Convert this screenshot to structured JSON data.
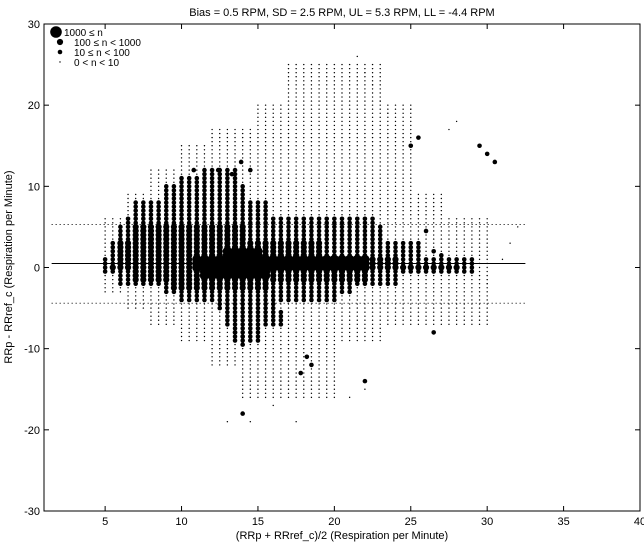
{
  "chart_data": {
    "type": "scatter",
    "title": "Bias = 0.5 RPM, SD = 2.5 RPM, UL = 5.3 RPM, LL = -4.4 RPM",
    "xlabel": "(RRp + RRref_c)/2 (Respiration per Minute)",
    "ylabel": "RRp - RRref_c (Respiration per Minute)",
    "xlim": [
      1,
      40
    ],
    "ylim": [
      -30,
      30
    ],
    "x_ticks": [
      5,
      10,
      15,
      20,
      25,
      30,
      35,
      40
    ],
    "y_ticks": [
      -30,
      -20,
      -10,
      0,
      10,
      20,
      30
    ],
    "x_tick_labels": [
      "5",
      "10",
      "15",
      "20",
      "25",
      "30",
      "35",
      "40"
    ],
    "y_tick_labels": [
      "-30",
      "-20",
      "-10",
      "0",
      "10",
      "20",
      "30"
    ],
    "grid": false,
    "legend_position": "top-left",
    "legend": [
      {
        "label": "1000 ≤ n",
        "size_class": "xlarge"
      },
      {
        "label": "100 ≤ n < 1000",
        "size_class": "large"
      },
      {
        "label": "10 ≤ n < 100",
        "size_class": "medium"
      },
      {
        "label": "0 < n < 10",
        "size_class": "small"
      }
    ],
    "reference_lines": [
      {
        "name": "Bias",
        "y": 0.5,
        "style": "solid",
        "x_range": [
          1.5,
          32.5
        ]
      },
      {
        "name": "UL",
        "y": 5.3,
        "style": "dotted",
        "x_range": [
          1.5,
          32.5
        ]
      },
      {
        "name": "LL",
        "y": -4.4,
        "style": "dotted",
        "x_range": [
          1.5,
          32.5
        ]
      }
    ],
    "color": "#000000",
    "grid_step": 0.5,
    "series": [
      {
        "size_class": "xlarge",
        "regions": [
          {
            "x": [
              11,
              22
            ],
            "y": [
              0,
              1
            ]
          },
          {
            "x": [
              11.5,
              15.5
            ],
            "y": [
              -1,
              -0.5
            ]
          },
          {
            "x": [
              13,
              15
            ],
            "y": [
              1.5,
              2
            ]
          }
        ],
        "points": []
      },
      {
        "size_class": "large",
        "regions": [
          {
            "x": [
              5.5,
              28
            ],
            "y": [
              0,
              0
            ]
          },
          {
            "x": [
              6,
              24
            ],
            "y": [
              0.5,
              1
            ]
          },
          {
            "x": [
              6,
              19
            ],
            "y": [
              1.5,
              3
            ]
          },
          {
            "x": [
              7,
              14
            ],
            "y": [
              3.5,
              5
            ]
          },
          {
            "x": [
              7,
              22
            ],
            "y": [
              -1.5,
              -0.5
            ]
          },
          {
            "x": [
              9.5,
              15.5
            ],
            "y": [
              -2.5,
              -2
            ]
          }
        ],
        "points": []
      },
      {
        "size_class": "medium",
        "regions": [
          {
            "x": [
              5,
              29
            ],
            "y": [
              -0.5,
              1
            ]
          },
          {
            "x": [
              5.5,
              25.5
            ],
            "y": [
              1.5,
              3
            ]
          },
          {
            "x": [
              6,
              23
            ],
            "y": [
              3.5,
              5
            ]
          },
          {
            "x": [
              6.5,
              22.5
            ],
            "y": [
              5.5,
              6
            ]
          },
          {
            "x": [
              7,
              15.5
            ],
            "y": [
              6.5,
              8
            ]
          },
          {
            "x": [
              9,
              14
            ],
            "y": [
              8.5,
              10
            ]
          },
          {
            "x": [
              10,
              13.5
            ],
            "y": [
              10.5,
              11
            ]
          },
          {
            "x": [
              11.5,
              13.5
            ],
            "y": [
              11.5,
              12
            ]
          },
          {
            "x": [
              6,
              24
            ],
            "y": [
              -2,
              -1
            ]
          },
          {
            "x": [
              9,
              21
            ],
            "y": [
              -3,
              -2.5
            ]
          },
          {
            "x": [
              10,
              20
            ],
            "y": [
              -4,
              -3.5
            ]
          },
          {
            "x": [
              12.5,
              16
            ],
            "y": [
              -4.5,
              -5
            ]
          },
          {
            "x": [
              13,
              16.5
            ],
            "y": [
              -5.5,
              -7
            ]
          },
          {
            "x": [
              13.5,
              15
            ],
            "y": [
              -7.5,
              -9
            ]
          }
        ],
        "points": [
          [
            10.8,
            12
          ],
          [
            12.4,
            12
          ],
          [
            13.3,
            11.5
          ],
          [
            13.9,
            13
          ],
          [
            14.5,
            12
          ],
          [
            26,
            4.5
          ],
          [
            26.5,
            2
          ],
          [
            27,
            1.5
          ],
          [
            25,
            15
          ],
          [
            25.5,
            16
          ],
          [
            29.5,
            15
          ],
          [
            30,
            14
          ],
          [
            30.5,
            13
          ],
          [
            26.5,
            -8
          ],
          [
            22,
            -14
          ],
          [
            14,
            -18
          ],
          [
            18.2,
            -11
          ],
          [
            18.5,
            -12
          ],
          [
            17.8,
            -13
          ],
          [
            14,
            -9.5
          ],
          [
            14,
            -8.5
          ],
          [
            13.5,
            -8
          ],
          [
            23.5,
            1
          ]
        ]
      },
      {
        "size_class": "small",
        "regions": [
          {
            "x": [
              5,
              30
            ],
            "y": [
              -3,
              6
            ]
          },
          {
            "x": [
              6.5,
              27
            ],
            "y": [
              -5,
              9
            ]
          },
          {
            "x": [
              8,
              25
            ],
            "y": [
              -7,
              12
            ]
          },
          {
            "x": [
              10,
              23
            ],
            "y": [
              -9,
              15
            ]
          },
          {
            "x": [
              12,
              20
            ],
            "y": [
              -12,
              17
            ]
          },
          {
            "x": [
              15,
              25
            ],
            "y": [
              10,
              20
            ]
          },
          {
            "x": [
              17,
              23
            ],
            "y": [
              17,
              25
            ]
          },
          {
            "x": [
              14,
              20
            ],
            "y": [
              -16,
              -9
            ]
          },
          {
            "x": [
              22,
              30
            ],
            "y": [
              -7,
              4
            ]
          }
        ],
        "points": [
          [
            21.5,
            26
          ],
          [
            22,
            24
          ],
          [
            22.5,
            22.5
          ],
          [
            23,
            20.5
          ],
          [
            23.5,
            19
          ],
          [
            25,
            19.5
          ],
          [
            27.5,
            17
          ],
          [
            28,
            18
          ],
          [
            32,
            5
          ],
          [
            31.5,
            3
          ],
          [
            31,
            1
          ],
          [
            30,
            -2
          ],
          [
            14.5,
            -19
          ],
          [
            13,
            -19
          ],
          [
            17.5,
            -19
          ],
          [
            22,
            -15
          ],
          [
            16,
            -17
          ],
          [
            21,
            -16
          ]
        ]
      }
    ]
  }
}
